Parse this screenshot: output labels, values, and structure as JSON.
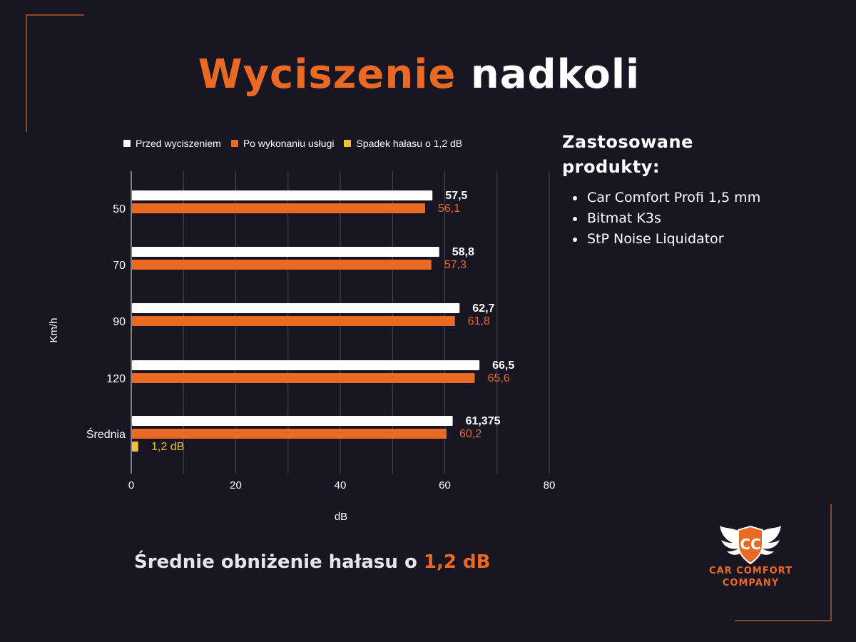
{
  "title": {
    "accent": "Wyciszenie",
    "rest": "nadkoli"
  },
  "legend": [
    {
      "label": "Przed wyciszeniem",
      "color": "#ffffff"
    },
    {
      "label": "Po wykonaniu usługi",
      "color": "#ea6a24"
    },
    {
      "label": "Spadek hałasu o 1,2 dB",
      "color": "#f2c230"
    }
  ],
  "chart_data": {
    "type": "bar",
    "orientation": "horizontal",
    "categories": [
      "50",
      "70",
      "90",
      "120",
      "Średnia"
    ],
    "series": [
      {
        "name": "Przed wyciszeniem",
        "color": "#ffffff",
        "values": [
          57.5,
          58.8,
          62.7,
          66.5,
          61.375
        ],
        "labels": [
          "57,5",
          "58,8",
          "62,7",
          "66,5",
          "61,375"
        ]
      },
      {
        "name": "Po wykonaniu usługi",
        "color": "#ea6a24",
        "values": [
          56.1,
          57.3,
          61.8,
          65.6,
          60.2
        ],
        "labels": [
          "56,1",
          "57,3",
          "61,8",
          "65,6",
          "60,2"
        ]
      },
      {
        "name": "Spadek hałasu o 1,2 dB",
        "color": "#f2c230",
        "values": [
          null,
          null,
          null,
          null,
          1.2
        ],
        "labels": [
          "",
          "",
          "",
          "",
          "1,2 dB"
        ]
      }
    ],
    "xlabel": "dB",
    "ylabel": "Km/h",
    "xlim": [
      0,
      80
    ],
    "xticks": [
      0,
      20,
      40,
      60,
      80
    ],
    "grid": true,
    "legend_position": "top"
  },
  "side": {
    "title_line1": "Zastosowane",
    "title_line2": "produkty:",
    "products": [
      "Car Comfort Profi 1,5 mm",
      "Bitmat K3s",
      "StP Noise Liquidator"
    ]
  },
  "summary": {
    "text": "Średnie obniżenie hałasu o",
    "value": "1,2 dB"
  },
  "logo": {
    "line1": "CAR COMFORT",
    "line2": "COMPANY",
    "mark": "CC",
    "icon": "winged-shield-icon"
  }
}
